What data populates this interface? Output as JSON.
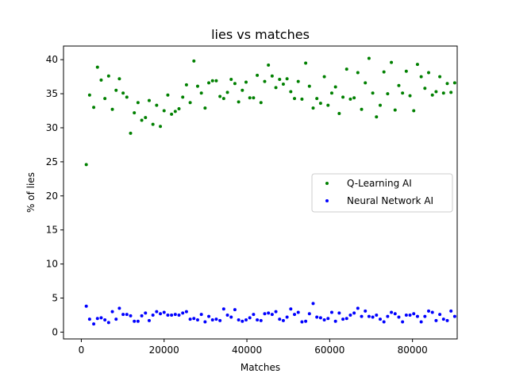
{
  "chart_data": {
    "type": "scatter",
    "title": "lies vs matches",
    "xlabel": "Matches",
    "ylabel": "% of lies",
    "xlim": [
      -4300,
      90800
    ],
    "ylim": [
      -1,
      42
    ],
    "xticks": [
      0,
      20000,
      40000,
      60000,
      80000
    ],
    "xtick_labels": [
      "0",
      "20000",
      "40000",
      "60000",
      "80000"
    ],
    "yticks": [
      0,
      5,
      10,
      15,
      20,
      25,
      30,
      35,
      40
    ],
    "ytick_labels": [
      "0",
      "5",
      "10",
      "15",
      "20",
      "25",
      "30",
      "35",
      "40"
    ],
    "grid": false,
    "legend": "center-right",
    "series": [
      {
        "name": "Q-Learning AI",
        "color": "#008000",
        "points": [
          [
            1200,
            24.6
          ],
          [
            2000,
            34.8
          ],
          [
            3000,
            33.0
          ],
          [
            3900,
            38.9
          ],
          [
            4800,
            37.0
          ],
          [
            5700,
            34.3
          ],
          [
            6600,
            37.6
          ],
          [
            7500,
            32.7
          ],
          [
            8400,
            35.5
          ],
          [
            9200,
            37.2
          ],
          [
            10100,
            35.1
          ],
          [
            11000,
            34.5
          ],
          [
            11900,
            29.2
          ],
          [
            12800,
            32.2
          ],
          [
            13700,
            33.7
          ],
          [
            14600,
            31.1
          ],
          [
            15500,
            31.5
          ],
          [
            16400,
            34.0
          ],
          [
            17300,
            30.5
          ],
          [
            18200,
            33.3
          ],
          [
            19100,
            30.2
          ],
          [
            20000,
            32.5
          ],
          [
            20900,
            34.8
          ],
          [
            21800,
            32.0
          ],
          [
            22700,
            32.4
          ],
          [
            23600,
            32.8
          ],
          [
            24500,
            34.5
          ],
          [
            25400,
            36.3
          ],
          [
            26300,
            33.7
          ],
          [
            27200,
            39.8
          ],
          [
            28100,
            36.1
          ],
          [
            29000,
            35.1
          ],
          [
            29900,
            32.9
          ],
          [
            30800,
            36.6
          ],
          [
            31700,
            36.9
          ],
          [
            32600,
            36.9
          ],
          [
            33500,
            34.6
          ],
          [
            34400,
            34.3
          ],
          [
            35300,
            35.2
          ],
          [
            36200,
            37.1
          ],
          [
            37100,
            36.5
          ],
          [
            38000,
            33.8
          ],
          [
            38900,
            35.5
          ],
          [
            39800,
            36.7
          ],
          [
            40700,
            34.4
          ],
          [
            41600,
            34.4
          ],
          [
            42500,
            37.7
          ],
          [
            43400,
            33.7
          ],
          [
            44300,
            36.8
          ],
          [
            45200,
            39.2
          ],
          [
            46100,
            37.6
          ],
          [
            47000,
            35.9
          ],
          [
            47900,
            37.1
          ],
          [
            48800,
            36.4
          ],
          [
            49700,
            37.2
          ],
          [
            50600,
            35.3
          ],
          [
            51500,
            34.3
          ],
          [
            52400,
            36.8
          ],
          [
            53300,
            34.2
          ],
          [
            54200,
            39.5
          ],
          [
            55100,
            36.1
          ],
          [
            56000,
            32.9
          ],
          [
            56900,
            34.3
          ],
          [
            57800,
            33.6
          ],
          [
            58700,
            37.5
          ],
          [
            59600,
            33.3
          ],
          [
            60500,
            35.1
          ],
          [
            61400,
            36.0
          ],
          [
            62300,
            32.1
          ],
          [
            63200,
            34.5
          ],
          [
            64100,
            38.6
          ],
          [
            65000,
            34.2
          ],
          [
            65900,
            34.4
          ],
          [
            66800,
            38.1
          ],
          [
            67700,
            32.7
          ],
          [
            68600,
            36.6
          ],
          [
            69500,
            40.2
          ],
          [
            70400,
            35.1
          ],
          [
            71300,
            31.6
          ],
          [
            72200,
            33.3
          ],
          [
            73100,
            38.2
          ],
          [
            74000,
            35.0
          ],
          [
            74900,
            39.6
          ],
          [
            75800,
            32.6
          ],
          [
            76700,
            36.2
          ],
          [
            77600,
            35.1
          ],
          [
            78500,
            38.3
          ],
          [
            79400,
            34.7
          ],
          [
            80300,
            32.5
          ],
          [
            81200,
            39.3
          ],
          [
            82100,
            37.5
          ],
          [
            83000,
            35.8
          ],
          [
            83900,
            38.1
          ],
          [
            84800,
            34.8
          ],
          [
            85700,
            35.3
          ],
          [
            86600,
            37.5
          ],
          [
            87500,
            35.1
          ],
          [
            88400,
            36.5
          ],
          [
            89300,
            35.2
          ],
          [
            90200,
            36.6
          ]
        ]
      },
      {
        "name": "Neural Network AI",
        "color": "#0000ff",
        "points": [
          [
            1200,
            3.8
          ],
          [
            2000,
            1.9
          ],
          [
            3000,
            1.2
          ],
          [
            3900,
            2.0
          ],
          [
            4800,
            2.1
          ],
          [
            5700,
            1.8
          ],
          [
            6600,
            1.4
          ],
          [
            7500,
            3.0
          ],
          [
            8400,
            1.9
          ],
          [
            9200,
            3.5
          ],
          [
            10100,
            2.6
          ],
          [
            11000,
            2.6
          ],
          [
            11900,
            2.4
          ],
          [
            12800,
            1.6
          ],
          [
            13700,
            1.6
          ],
          [
            14600,
            2.4
          ],
          [
            15500,
            2.8
          ],
          [
            16400,
            1.7
          ],
          [
            17300,
            2.5
          ],
          [
            18200,
            3.0
          ],
          [
            19100,
            2.7
          ],
          [
            20000,
            2.9
          ],
          [
            20900,
            2.5
          ],
          [
            21800,
            2.5
          ],
          [
            22700,
            2.6
          ],
          [
            23600,
            2.5
          ],
          [
            24500,
            2.8
          ],
          [
            25400,
            3.0
          ],
          [
            26300,
            1.9
          ],
          [
            27200,
            2.0
          ],
          [
            28100,
            1.8
          ],
          [
            29000,
            2.6
          ],
          [
            29900,
            1.5
          ],
          [
            30800,
            2.3
          ],
          [
            31700,
            1.8
          ],
          [
            32600,
            1.9
          ],
          [
            33500,
            1.7
          ],
          [
            34400,
            3.4
          ],
          [
            35300,
            2.5
          ],
          [
            36200,
            2.2
          ],
          [
            37100,
            3.3
          ],
          [
            38000,
            1.8
          ],
          [
            38900,
            1.6
          ],
          [
            39800,
            1.8
          ],
          [
            40700,
            2.1
          ],
          [
            41600,
            2.6
          ],
          [
            42500,
            1.8
          ],
          [
            43400,
            1.7
          ],
          [
            44300,
            2.7
          ],
          [
            45200,
            2.8
          ],
          [
            46100,
            2.6
          ],
          [
            47000,
            3.0
          ],
          [
            47900,
            1.9
          ],
          [
            48800,
            1.7
          ],
          [
            49700,
            2.2
          ],
          [
            50600,
            3.4
          ],
          [
            51500,
            2.6
          ],
          [
            52400,
            2.9
          ],
          [
            53300,
            1.5
          ],
          [
            54200,
            1.6
          ],
          [
            55100,
            2.7
          ],
          [
            56000,
            4.2
          ],
          [
            56900,
            2.2
          ],
          [
            57800,
            2.1
          ],
          [
            58700,
            1.8
          ],
          [
            59600,
            2.0
          ],
          [
            60500,
            2.9
          ],
          [
            61400,
            1.6
          ],
          [
            62300,
            2.8
          ],
          [
            63200,
            1.9
          ],
          [
            64100,
            2.0
          ],
          [
            65000,
            2.5
          ],
          [
            65900,
            2.8
          ],
          [
            66800,
            3.5
          ],
          [
            67700,
            2.3
          ],
          [
            68600,
            3.1
          ],
          [
            69500,
            2.3
          ],
          [
            70400,
            2.2
          ],
          [
            71300,
            2.5
          ],
          [
            72200,
            1.9
          ],
          [
            73100,
            1.5
          ],
          [
            74000,
            2.3
          ],
          [
            74900,
            2.9
          ],
          [
            75800,
            2.7
          ],
          [
            76700,
            2.2
          ],
          [
            77600,
            1.5
          ],
          [
            78500,
            2.5
          ],
          [
            79400,
            2.5
          ],
          [
            80300,
            2.7
          ],
          [
            81200,
            2.3
          ],
          [
            82100,
            1.5
          ],
          [
            83000,
            2.3
          ],
          [
            83900,
            3.1
          ],
          [
            84800,
            2.9
          ],
          [
            85700,
            1.7
          ],
          [
            86600,
            2.6
          ],
          [
            87500,
            1.9
          ],
          [
            88400,
            1.7
          ],
          [
            89300,
            3.1
          ],
          [
            90200,
            2.3
          ]
        ]
      }
    ]
  }
}
